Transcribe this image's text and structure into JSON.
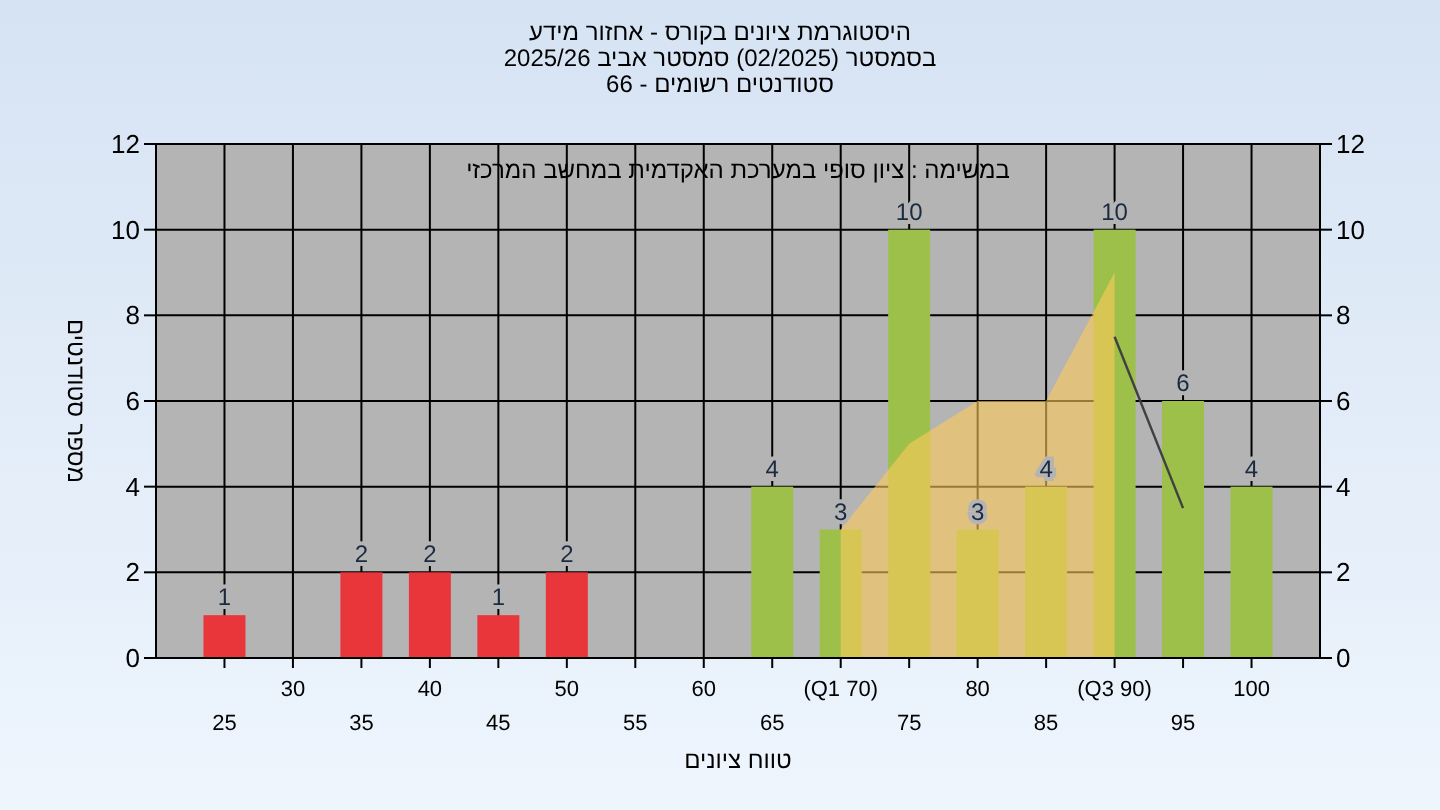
{
  "chart_data": {
    "type": "bar",
    "title": "היסטוגרמת ציונים בקורס - אחזור מידע",
    "subtitle": "בסמסטר  (02/2025)  סמסטר אביב 2025/26\nסטודנטים רשומים - 66",
    "xlabel": "טווח ציונים",
    "ylabel": "מספר סטודנטים",
    "annotations": [
      "במשימה : ציון סופי במערכת האקדמית במחשב המרכזי"
    ],
    "categories": [
      "25",
      "30",
      "35",
      "40",
      "45",
      "50",
      "55",
      "60",
      "65",
      "(Q1 70)",
      "75",
      "80",
      "85",
      "(Q3 90)",
      "95",
      "100"
    ],
    "series": [
      {
        "type": "area",
        "color": "#ffc95a",
        "values": [
          null,
          null,
          null,
          null,
          null,
          null,
          null,
          null,
          null,
          3,
          5,
          6,
          6,
          9,
          null,
          null
        ]
      },
      {
        "type": "line",
        "color": "#404040",
        "values": [
          null,
          null,
          null,
          null,
          null,
          null,
          null,
          null,
          null,
          null,
          null,
          null,
          null,
          7.5,
          3.5,
          null
        ]
      },
      {
        "values": [
          1,
          0,
          2,
          2,
          1,
          2,
          0,
          0,
          4,
          3,
          10,
          3,
          4,
          10,
          6,
          4
        ],
        "colors": [
          "#e8363b",
          "#e8363b",
          "#e8363b",
          "#e8363b",
          "#e8363b",
          "#e8363b",
          "#e8363b",
          "#e8363b",
          "#9cc04a",
          "#9cc04a",
          "#9cc04a",
          "#9cc04a",
          "#9cc04a",
          "#9cc04a",
          "#9cc04a",
          "#9cc04a"
        ],
        "value_labels": [
          "1",
          null,
          "2",
          "2",
          "1",
          "2",
          null,
          null,
          "4",
          "3",
          "10",
          "3",
          "4",
          "10",
          "6",
          "4"
        ]
      }
    ],
    "ylim": [
      0,
      12
    ],
    "yticks": [
      0,
      2,
      4,
      6,
      8,
      10,
      12
    ],
    "y2lim": [
      0,
      12
    ],
    "y2ticks": [
      0,
      2,
      4,
      6,
      8,
      10,
      12
    ],
    "grid": true
  }
}
